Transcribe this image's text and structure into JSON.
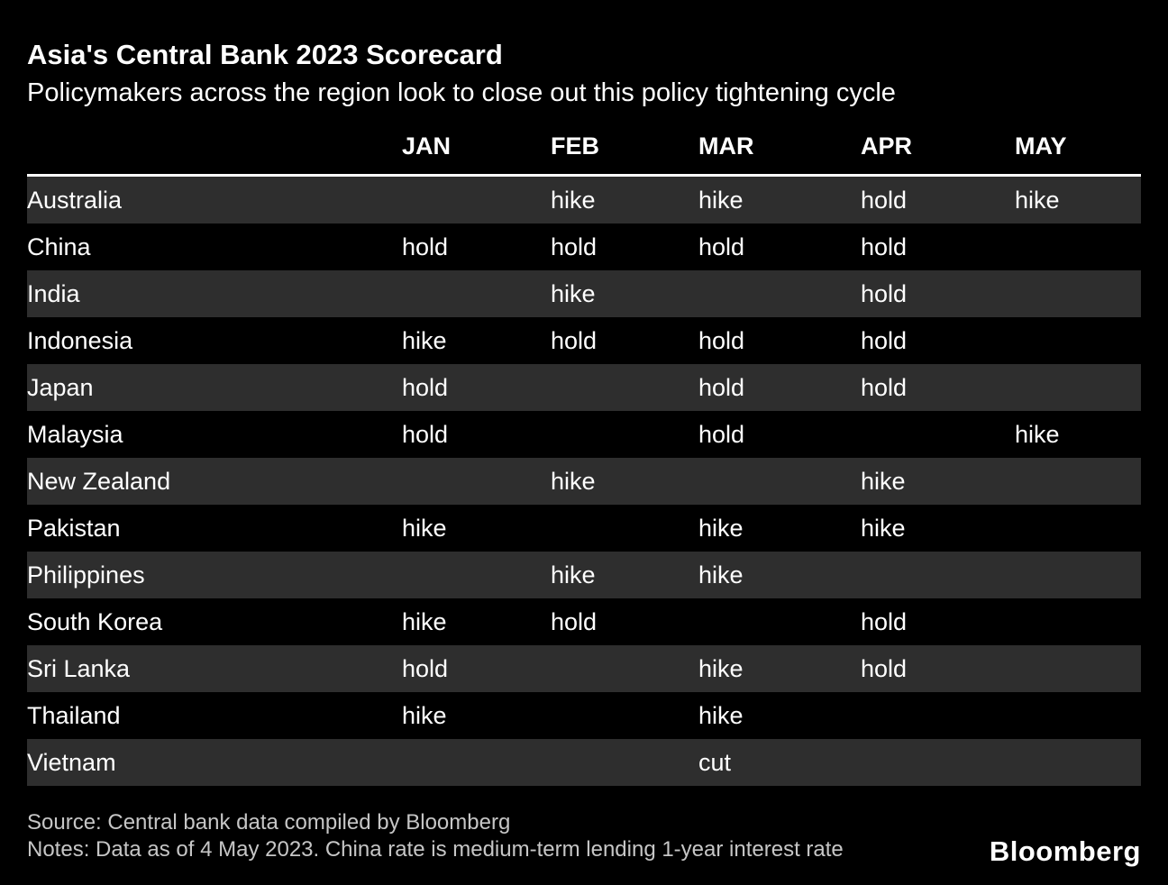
{
  "chart_data": {
    "type": "table",
    "title": "Asia's Central Bank 2023 Scorecard",
    "subtitle": "Policymakers across the region look to close out this policy tightening cycle",
    "columns": [
      "JAN",
      "FEB",
      "MAR",
      "APR",
      "MAY"
    ],
    "value_domain": [
      "hike",
      "hold",
      "cut"
    ],
    "rows": [
      {
        "country": "Australia",
        "values": [
          "",
          "hike",
          "hike",
          "hold",
          "hike"
        ]
      },
      {
        "country": "China",
        "values": [
          "hold",
          "hold",
          "hold",
          "hold",
          ""
        ]
      },
      {
        "country": "India",
        "values": [
          "",
          "hike",
          "",
          "hold",
          ""
        ]
      },
      {
        "country": "Indonesia",
        "values": [
          "hike",
          "hold",
          "hold",
          "hold",
          ""
        ]
      },
      {
        "country": "Japan",
        "values": [
          "hold",
          "",
          "hold",
          "hold",
          ""
        ]
      },
      {
        "country": "Malaysia",
        "values": [
          "hold",
          "",
          "hold",
          "",
          "hike"
        ]
      },
      {
        "country": "New Zealand",
        "values": [
          "",
          "hike",
          "",
          "hike",
          ""
        ]
      },
      {
        "country": "Pakistan",
        "values": [
          "hike",
          "",
          "hike",
          "hike",
          ""
        ]
      },
      {
        "country": "Philippines",
        "values": [
          "",
          "hike",
          "hike",
          "",
          ""
        ]
      },
      {
        "country": "South Korea",
        "values": [
          "hike",
          "hold",
          "",
          "hold",
          ""
        ]
      },
      {
        "country": "Sri Lanka",
        "values": [
          "hold",
          "",
          "hike",
          "hold",
          ""
        ]
      },
      {
        "country": "Thailand",
        "values": [
          "hike",
          "",
          "hike",
          "",
          ""
        ]
      },
      {
        "country": "Vietnam",
        "values": [
          "",
          "",
          "cut",
          "",
          ""
        ]
      }
    ],
    "layout": {
      "striped_rows": "alternating starting with first row",
      "grid": "off",
      "legend": "none"
    }
  },
  "footer": {
    "source": "Source: Central bank data compiled by Bloomberg",
    "notes": "Notes: Data as of 4 May 2023. China rate is medium-term lending 1-year interest rate",
    "logo": "Bloomberg"
  },
  "colors": {
    "background": "#000000",
    "row_stripe": "#2e2e2e",
    "text": "#ffffff",
    "footer_text": "#c6c6c6",
    "header_rule": "#ffffff"
  }
}
